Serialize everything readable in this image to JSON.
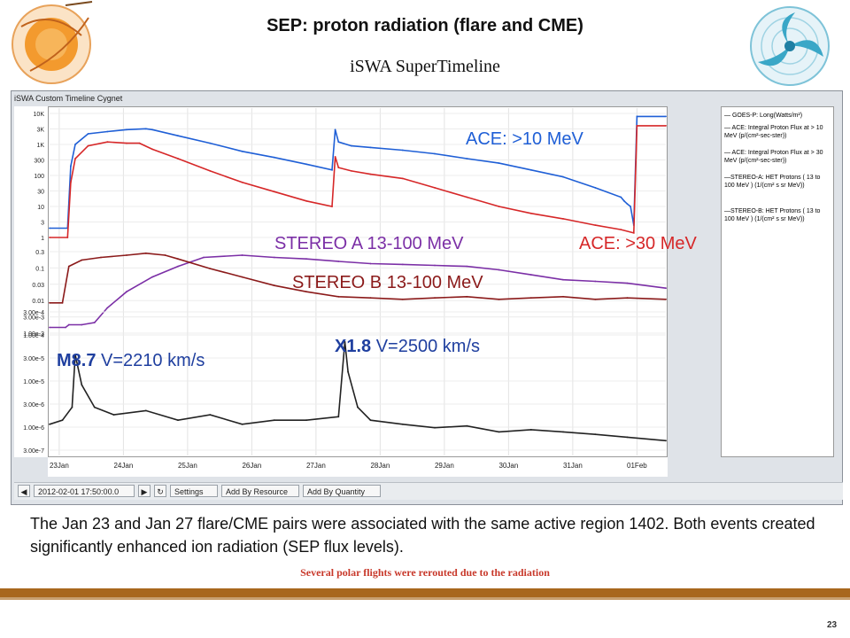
{
  "title": "SEP: proton radiation (flare and CME)",
  "subtitle": "iSWA SuperTimeline",
  "window_title": "iSWA Custom Timeline Cygnet",
  "toolbar": {
    "datetime": "2012-02-01 17:50:00.0",
    "settings": "Settings",
    "add_by_resource": "Add By Resource",
    "add_by_quantity": "Add By Quantity"
  },
  "legend": [
    {
      "label": "— GOES-P: Long(Watts/m²)",
      "color": "#222222"
    },
    {
      "label": "— ACE: Integral Proton Flux at > 10 MeV (p/(cm²-sec-ster))",
      "color": "#1f5fd6"
    },
    {
      "label": "— ACE: Integral Proton Flux at > 30 MeV (p/(cm²-sec-ster))",
      "color": "#d62728"
    },
    {
      "label": "—STEREO-A: HET Protons ( 13 to 100 MeV ) (1/(cm² s sr MeV))",
      "color": "#7b2fa6"
    },
    {
      "label": "—STEREO-B: HET Protons ( 13 to 100 MeV ) (1/(cm² s sr MeV))",
      "color": "#8b1a1a"
    }
  ],
  "annotations": {
    "ace10": "ACE: >10 MeV",
    "ace30": "ACE: >30 MeV",
    "stereo_a": "STEREO A 13-100 MeV",
    "stereo_b": "STEREO B 13-100 MeV",
    "flare1_class": "M8.7",
    "flare1_speed": "V=2210 km/s",
    "flare2_class": "X1.8",
    "flare2_speed": "V=2500 km/s"
  },
  "body_text": "The Jan 23 and Jan 27 flare/CME pairs were associated with the same active region 1402. Both events created significantly enhanced ion radiation (SEP flux levels).",
  "footnote": "Several polar flights were rerouted due to the radiation",
  "page_number": "23",
  "chart_data": {
    "type": "line",
    "x_categories": [
      "23Jan",
      "24Jan",
      "25Jan",
      "26Jan",
      "27Jan",
      "28Jan",
      "29Jan",
      "30Jan",
      "31Jan",
      "01Feb"
    ],
    "xlim_days": [
      0,
      9.6
    ],
    "panels": [
      {
        "id": "proton_flux",
        "y_ticks": [
          "10K",
          "3K",
          "1K",
          "300",
          "100",
          "30",
          "10",
          "3",
          "1"
        ],
        "scale": "log",
        "ylim": [
          1,
          10000
        ],
        "series": [
          {
            "key": "ace10",
            "color": "#1f5fd6",
            "x": [
              0,
              0.28,
              0.33,
              0.4,
              0.6,
              0.9,
              1.2,
              1.5,
              1.6,
              2.0,
              2.5,
              3.0,
              3.5,
              4.0,
              4.4,
              4.45,
              4.5,
              4.7,
              5.0,
              5.5,
              6.0,
              6.5,
              7.0,
              7.5,
              8.0,
              8.5,
              8.9,
              8.95,
              9.0,
              9.05,
              9.1,
              9.15,
              9.6
            ],
            "y": [
              2,
              2,
              200,
              1000,
              2200,
              2600,
              3000,
              3200,
              3000,
              1900,
              1100,
              600,
              380,
              230,
              150,
              3000,
              1200,
              900,
              800,
              650,
              500,
              350,
              250,
              150,
              90,
              40,
              20,
              15,
              12,
              10,
              2.5,
              8000,
              8000
            ]
          },
          {
            "key": "ace30",
            "color": "#d62728",
            "x": [
              0,
              0.28,
              0.33,
              0.4,
              0.6,
              0.9,
              1.2,
              1.4,
              1.6,
              2.0,
              2.5,
              3.0,
              3.5,
              4.0,
              4.4,
              4.45,
              4.5,
              4.7,
              5.0,
              5.5,
              6.0,
              6.5,
              7.0,
              7.5,
              8.0,
              8.5,
              8.9,
              9.1,
              9.15,
              9.6
            ],
            "y": [
              1,
              1,
              60,
              350,
              900,
              1200,
              1100,
              1100,
              700,
              350,
              140,
              60,
              30,
              15,
              10,
              400,
              180,
              140,
              110,
              80,
              40,
              20,
              10,
              6,
              4,
              2.5,
              1.8,
              1.4,
              4000,
              4000
            ]
          }
        ]
      },
      {
        "id": "stereo_flux",
        "y_ticks": [
          "0.3",
          "0.1",
          "0.03",
          "0.01",
          "3.00e-3",
          "1.00e-3"
        ],
        "scale": "log",
        "ylim": [
          0.0005,
          0.4
        ],
        "series": [
          {
            "key": "stereo_a",
            "color": "#7b2fa6",
            "x": [
              0,
              0.25,
              0.3,
              0.5,
              0.7,
              0.9,
              1.2,
              1.6,
              2.0,
              2.4,
              3.0,
              3.5,
              4.0,
              4.5,
              5.0,
              5.5,
              6.0,
              6.5,
              7.0,
              7.5,
              8.0,
              8.5,
              9.0,
              9.6
            ],
            "y": [
              0.0008,
              0.0008,
              0.001,
              0.001,
              0.0012,
              0.004,
              0.015,
              0.05,
              0.12,
              0.25,
              0.3,
              0.25,
              0.22,
              0.18,
              0.15,
              0.14,
              0.13,
              0.12,
              0.09,
              0.06,
              0.04,
              0.035,
              0.03,
              0.02
            ]
          },
          {
            "key": "stereo_b",
            "color": "#8b1a1a",
            "x": [
              0,
              0.2,
              0.3,
              0.5,
              0.8,
              1.2,
              1.5,
              1.8,
              2.0,
              2.5,
              3.0,
              3.5,
              4.0,
              4.5,
              5.0,
              5.5,
              6.0,
              6.5,
              7.0,
              7.5,
              8.0,
              8.5,
              9.0,
              9.6
            ],
            "y": [
              0.006,
              0.006,
              0.12,
              0.2,
              0.25,
              0.3,
              0.35,
              0.3,
              0.22,
              0.1,
              0.05,
              0.025,
              0.015,
              0.01,
              0.009,
              0.008,
              0.009,
              0.01,
              0.008,
              0.009,
              0.01,
              0.008,
              0.009,
              0.008
            ]
          }
        ]
      },
      {
        "id": "goes_xray",
        "y_ticks": [
          "3.00e-4",
          "1.00e-4",
          "3.00e-5",
          "1.00e-5",
          "3.00e-6",
          "1.00e-6",
          "3.00e-7"
        ],
        "scale": "log",
        "ylim": [
          3e-07,
          0.0005
        ],
        "series": [
          {
            "key": "goes",
            "color": "#222222",
            "x": [
              0,
              0.2,
              0.35,
              0.4,
              0.5,
              0.7,
              1.0,
              1.5,
              2.0,
              2.5,
              3.0,
              3.5,
              4.0,
              4.5,
              4.6,
              4.65,
              4.8,
              5.0,
              5.5,
              6.0,
              6.5,
              7.0,
              7.5,
              8.0,
              8.5,
              9.0,
              9.6
            ],
            "y": [
              1.2e-06,
              1.5e-06,
              3e-06,
              5e-05,
              1e-05,
              3e-06,
              2e-06,
              2.5e-06,
              1.5e-06,
              2e-06,
              1.2e-06,
              1.5e-06,
              1.5e-06,
              1.8e-06,
              0.0001,
              2e-05,
              3e-06,
              1.5e-06,
              1.2e-06,
              1e-06,
              1.1e-06,
              8e-07,
              9e-07,
              8e-07,
              7e-07,
              6e-07,
              5e-07
            ]
          }
        ]
      }
    ]
  }
}
